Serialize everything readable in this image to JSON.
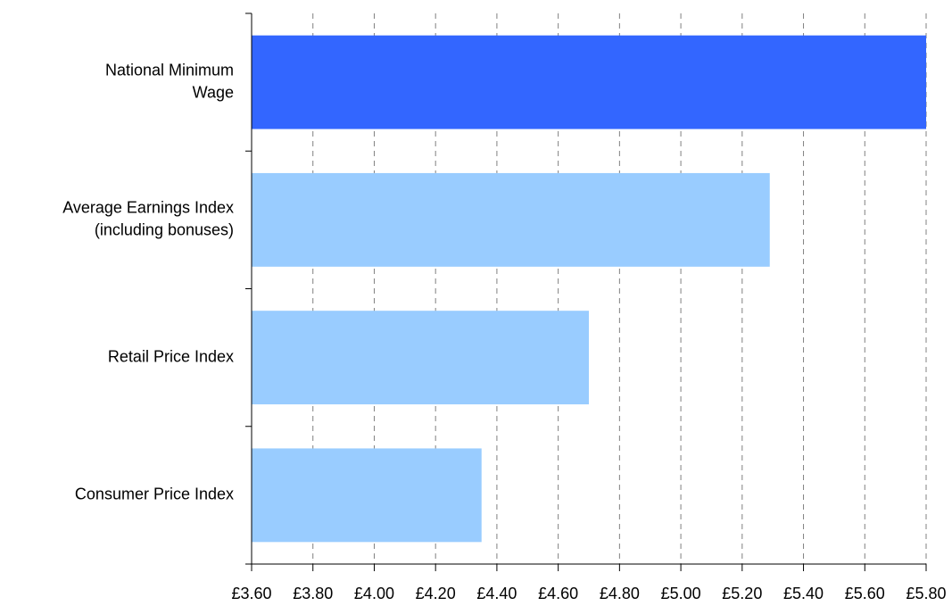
{
  "chart_data": {
    "type": "hbar",
    "categories": [
      [
        "National Minimum",
        "Wage"
      ],
      [
        "Average Earnings Index",
        "(including bonuses)"
      ],
      [
        "Retail Price Index"
      ],
      [
        "Consumer Price Index"
      ]
    ],
    "values": [
      5.8,
      5.29,
      4.7,
      4.35
    ],
    "colors": [
      "#3366ff",
      "#99ccff",
      "#99ccff",
      "#99ccff"
    ],
    "xlim": [
      3.6,
      5.8
    ],
    "xticks": [
      {
        "value": 3.6,
        "label": "£3.60"
      },
      {
        "value": 3.8,
        "label": "£3.80"
      },
      {
        "value": 4.0,
        "label": "£4.00"
      },
      {
        "value": 4.2,
        "label": "£4.20"
      },
      {
        "value": 4.4,
        "label": "£4.40"
      },
      {
        "value": 4.6,
        "label": "£4.60"
      },
      {
        "value": 4.8,
        "label": "£4.80"
      },
      {
        "value": 5.0,
        "label": "£5.00"
      },
      {
        "value": 5.2,
        "label": "£5.20"
      },
      {
        "value": 5.4,
        "label": "£5.40"
      },
      {
        "value": 5.6,
        "label": "£5.60"
      },
      {
        "value": 5.8,
        "label": "£5.80"
      }
    ],
    "grid": true
  }
}
